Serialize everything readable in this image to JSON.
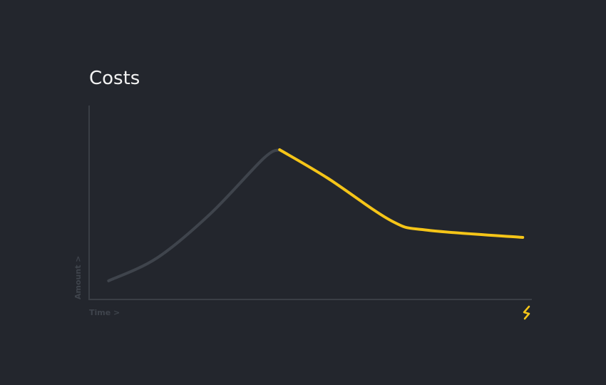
{
  "chart_data": {
    "type": "line",
    "title": "Costs",
    "x_label": "Time >",
    "y_label": "Amount >",
    "x": [
      4.4,
      15.3,
      27.4,
      39.5,
      43.1,
      54.0,
      68.5,
      76.6,
      98.1
    ],
    "series": [
      {
        "color": "#3f444c",
        "values": [
          9.6,
          21.3,
          44.1,
          72.8,
          77.2,
          null,
          null,
          null,
          null
        ]
      },
      {
        "color": "#f5c518",
        "values": [
          null,
          null,
          null,
          null,
          77.2,
          62.5,
          40.4,
          35.7,
          32.0
        ]
      }
    ],
    "xlim": [
      0,
      100
    ],
    "ylim": [
      0,
      100
    ]
  }
}
